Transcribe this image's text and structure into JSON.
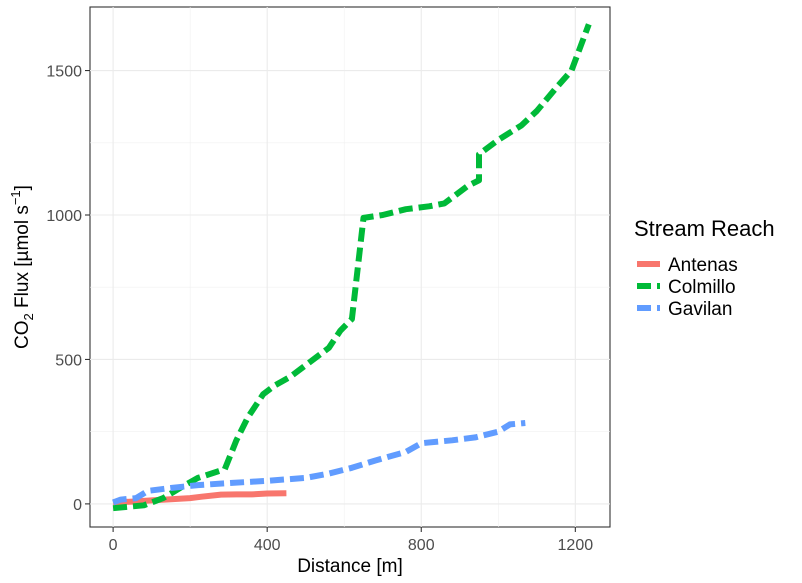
{
  "chart_data": {
    "type": "line",
    "title": "",
    "xlabel": "Distance [m]",
    "ylabel": {
      "prefix": "CO",
      "sub": "2",
      "middle": " Flux [µmol s",
      "sup": "−1",
      "suffix": "]"
    },
    "xlim": [
      -60,
      1290
    ],
    "ylim": [
      -80,
      1720
    ],
    "x_ticks": [
      0,
      400,
      800,
      1200
    ],
    "x_tick_labels": [
      "0",
      "400",
      "800",
      "1200"
    ],
    "y_ticks": [
      0,
      500,
      1000,
      1500
    ],
    "y_tick_labels": [
      "0",
      "500",
      "1000",
      "1500"
    ],
    "grid": true,
    "legend": {
      "title": "Stream Reach",
      "position": "right"
    },
    "series": [
      {
        "name": "Antenas",
        "color": "#F8766D",
        "dash": "solid",
        "x": [
          0,
          50,
          100,
          150,
          200,
          230,
          280,
          320,
          360,
          400,
          450
        ],
        "y": [
          5,
          8,
          12,
          16,
          20,
          25,
          32,
          33,
          33,
          36,
          37
        ]
      },
      {
        "name": "Colmillo",
        "color": "#00BA38",
        "dash": "dashed",
        "x": [
          0,
          80,
          130,
          180,
          220,
          290,
          320,
          350,
          390,
          420,
          460,
          500,
          560,
          590,
          620,
          650,
          700,
          760,
          820,
          860,
          890,
          920,
          950,
          950,
          1000,
          1060,
          1100,
          1150,
          1190,
          1235
        ],
        "y": [
          -15,
          -5,
          20,
          60,
          90,
          120,
          220,
          300,
          380,
          410,
          440,
          480,
          540,
          600,
          640,
          990,
          1000,
          1020,
          1030,
          1040,
          1070,
          1100,
          1120,
          1210,
          1260,
          1310,
          1360,
          1440,
          1500,
          1660
        ]
      },
      {
        "name": "Gavilan",
        "color": "#619CFF",
        "dash": "dashed",
        "x": [
          0,
          20,
          60,
          90,
          150,
          220,
          300,
          400,
          500,
          560,
          620,
          680,
          760,
          800,
          880,
          940,
          1000,
          1030,
          1070
        ],
        "y": [
          5,
          15,
          20,
          45,
          55,
          65,
          72,
          80,
          90,
          105,
          125,
          150,
          180,
          210,
          220,
          230,
          250,
          275,
          280
        ]
      }
    ]
  }
}
